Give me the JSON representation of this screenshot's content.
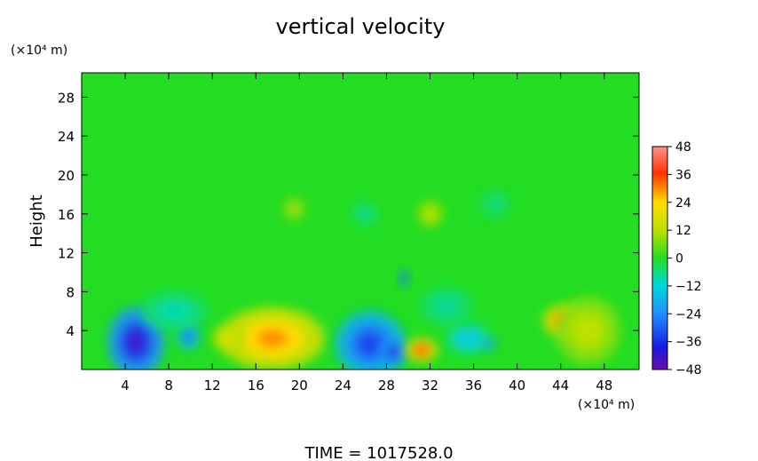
{
  "chart_data": {
    "type": "heatmap",
    "title": "vertical velocity",
    "ylabel": "Height",
    "y_unit": "(×10⁴ m)",
    "x_unit": "(×10⁴ m)",
    "footer": "TIME  =  1017528.0",
    "xlim": [
      0,
      51.2
    ],
    "ylim": [
      0,
      30.5
    ],
    "x_ticks": [
      "4",
      "8",
      "12",
      "16",
      "20",
      "24",
      "28",
      "32",
      "36",
      "40",
      "44",
      "48"
    ],
    "y_ticks": [
      "4",
      "8",
      "12",
      "16",
      "20",
      "24",
      "28"
    ],
    "colorbar": {
      "range": [
        -48,
        48
      ],
      "labels": [
        "48",
        "36",
        "24",
        "12",
        "0",
        "−12",
        "−24",
        "−36",
        "−48"
      ]
    },
    "background_value": 0,
    "features": [
      {
        "x": 5.0,
        "y": 2.8,
        "rx": 2.6,
        "ry": 3.6,
        "value": -42
      },
      {
        "x": 9.8,
        "y": 3.5,
        "rx": 1.0,
        "ry": 1.5,
        "value": -30
      },
      {
        "x": 17.5,
        "y": 3.2,
        "rx": 4.8,
        "ry": 3.2,
        "value": 30
      },
      {
        "x": 13.5,
        "y": 3.2,
        "rx": 1.5,
        "ry": 1.3,
        "value": 20
      },
      {
        "x": 26.5,
        "y": 2.6,
        "rx": 3.2,
        "ry": 3.4,
        "value": -34
      },
      {
        "x": 28.6,
        "y": 1.8,
        "rx": 1.2,
        "ry": 1.4,
        "value": -40
      },
      {
        "x": 31.2,
        "y": 2.0,
        "rx": 1.5,
        "ry": 1.2,
        "value": 38
      },
      {
        "x": 29.6,
        "y": 9.4,
        "rx": 0.4,
        "ry": 0.8,
        "value": -40
      },
      {
        "x": 35.5,
        "y": 3.2,
        "rx": 2.0,
        "ry": 1.6,
        "value": -16
      },
      {
        "x": 37.4,
        "y": 2.6,
        "rx": 0.6,
        "ry": 0.6,
        "value": -30
      },
      {
        "x": 44.2,
        "y": 5.0,
        "rx": 1.8,
        "ry": 1.6,
        "value": 34
      },
      {
        "x": 46.5,
        "y": 4.0,
        "rx": 3.0,
        "ry": 3.5,
        "value": 14
      },
      {
        "x": 8.5,
        "y": 6.0,
        "rx": 3.0,
        "ry": 2.0,
        "value": -10
      },
      {
        "x": 33.5,
        "y": 6.5,
        "rx": 2.5,
        "ry": 2.0,
        "value": -8
      },
      {
        "x": 19.5,
        "y": 16.5,
        "rx": 1.0,
        "ry": 1.2,
        "value": 12
      },
      {
        "x": 32.0,
        "y": 16.0,
        "rx": 1.2,
        "ry": 1.4,
        "value": 14
      },
      {
        "x": 26.0,
        "y": 16.0,
        "rx": 1.2,
        "ry": 1.2,
        "value": -8
      },
      {
        "x": 38.0,
        "y": 17.0,
        "rx": 1.5,
        "ry": 1.5,
        "value": -6
      }
    ]
  }
}
